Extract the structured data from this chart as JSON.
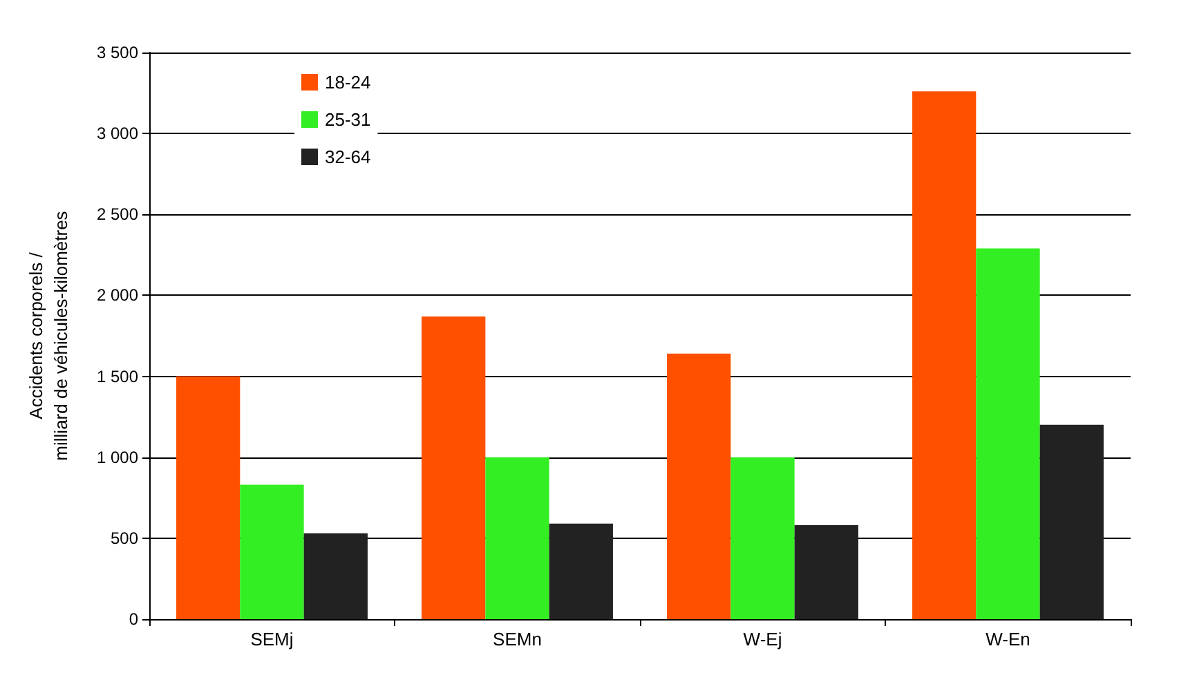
{
  "chart_data": {
    "type": "bar",
    "ylabel": "Accidents corporels /\nmilliard de véhicules-kilomètres",
    "categories": [
      "SEMj",
      "SEMn",
      "W-Ej",
      "W-En"
    ],
    "series": [
      {
        "name": "18-24",
        "color": "#ff5000",
        "values": [
          1500,
          1870,
          1640,
          3260
        ]
      },
      {
        "name": "25-31",
        "color": "#33ee22",
        "values": [
          830,
          1000,
          1000,
          2290
        ]
      },
      {
        "name": "32-64",
        "color": "#222222",
        "values": [
          530,
          590,
          580,
          1200
        ]
      }
    ],
    "ylim": [
      0,
      3500
    ],
    "yticks": [
      0,
      500,
      {
        "value": 1000,
        "label": "1 000"
      },
      {
        "value": 1500,
        "label": "1 500"
      },
      {
        "value": 2000,
        "label": "2 000"
      },
      {
        "value": 2500,
        "label": "2 500"
      },
      {
        "value": 3000,
        "label": "3 000"
      },
      {
        "value": 3500,
        "label": "3 500"
      }
    ],
    "grid": "y",
    "legend": "top left"
  }
}
